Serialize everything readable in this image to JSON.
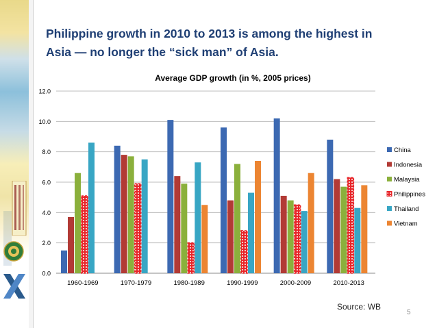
{
  "slide": {
    "headline_line1": "Philippine growth in 2010 to 2013 is among the highest in",
    "headline_line2": "Asia — no longer the “sick man” of Asia.",
    "source": "Source: WB",
    "slide_number": "5"
  },
  "colors": {
    "headline": "#1f3f74",
    "China": "#3c69b2",
    "Indonesia": "#b23a35",
    "Malaysia": "#8bb03c",
    "Philippines": "#e8262a",
    "Thailand": "#38a6c4",
    "Vietnam": "#ec8532"
  },
  "chart_data": {
    "type": "bar",
    "title": "Average GDP growth (in %, 2005 prices)",
    "xlabel": "",
    "ylabel": "",
    "ylim": [
      0,
      12
    ],
    "yticks": [
      "0.0",
      "2.0",
      "4.0",
      "6.0",
      "8.0",
      "10.0",
      "12.0"
    ],
    "grid": true,
    "legend_position": "right",
    "categories": [
      "1960-1969",
      "1970-1979",
      "1980-1989",
      "1990-1999",
      "2000-2009",
      "2010-2013"
    ],
    "series": [
      {
        "name": "China",
        "values": [
          1.5,
          8.4,
          10.1,
          9.6,
          10.2,
          8.8
        ]
      },
      {
        "name": "Indonesia",
        "values": [
          3.7,
          7.8,
          6.4,
          4.8,
          5.1,
          6.2
        ]
      },
      {
        "name": "Malaysia",
        "values": [
          6.6,
          7.7,
          5.9,
          7.2,
          4.8,
          5.7
        ]
      },
      {
        "name": "Philippines",
        "values": [
          5.1,
          5.9,
          2.0,
          2.8,
          4.5,
          6.3
        ]
      },
      {
        "name": "Thailand",
        "values": [
          8.6,
          7.5,
          7.3,
          5.3,
          4.1,
          4.3
        ]
      },
      {
        "name": "Vietnam",
        "values": [
          0,
          0,
          4.5,
          7.4,
          6.6,
          5.8
        ]
      }
    ]
  }
}
